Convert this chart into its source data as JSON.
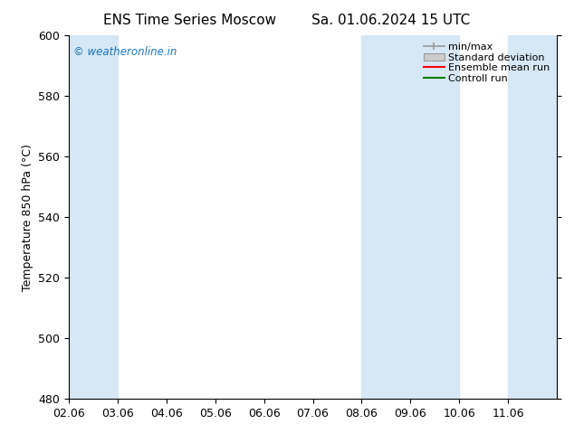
{
  "title_left": "ENS Time Series Moscow",
  "title_right": "Sa. 01.06.2024 15 UTC",
  "ylabel": "Temperature 850 hPa (°C)",
  "ylim": [
    480,
    600
  ],
  "yticks": [
    480,
    500,
    520,
    540,
    560,
    580,
    600
  ],
  "xlim": [
    0,
    10
  ],
  "xtick_labels": [
    "02.06",
    "03.06",
    "04.06",
    "05.06",
    "06.06",
    "07.06",
    "08.06",
    "09.06",
    "10.06",
    "11.06"
  ],
  "xtick_positions": [
    0,
    1,
    2,
    3,
    4,
    5,
    6,
    7,
    8,
    9
  ],
  "shaded_bands": [
    {
      "xmin": 0.0,
      "xmax": 1.0,
      "color": "#d6e8f5"
    },
    {
      "xmin": 6.0,
      "xmax": 8.0,
      "color": "#d6e8f5"
    },
    {
      "xmin": 9.0,
      "xmax": 10.0,
      "color": "#d6e8f5"
    }
  ],
  "watermark_text": "© weatheronline.in",
  "watermark_color": "#1a75bb",
  "background_color": "#ffffff",
  "plot_bg_color": "#ffffff",
  "title_fontsize": 11,
  "axis_fontsize": 9,
  "tick_fontsize": 9
}
